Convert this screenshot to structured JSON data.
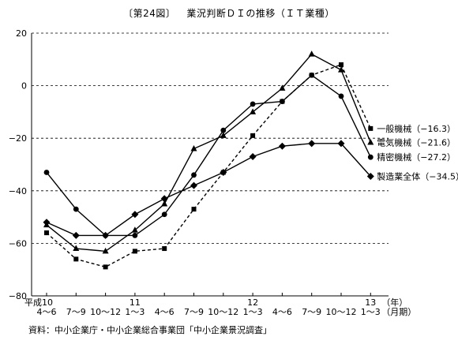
{
  "title": {
    "figure_no": "〔第24図〕",
    "text": "業況判断ＤＩの推移（ＩＴ業種）"
  },
  "source": "資料：中小企業庁・中小企業総合事業団「中小企業景況調査」",
  "chart_data": {
    "type": "line",
    "title": "業況判断ＤＩの推移（ＩＴ業種）",
    "ylim": [
      -80,
      20
    ],
    "yticks": [
      20,
      0,
      -20,
      -40,
      -60,
      -80
    ],
    "y_tick_labels": [
      "20",
      "0",
      "−20",
      "−40",
      "−60",
      "−80"
    ],
    "grid": "horizontal dashed",
    "categories": [
      "4〜6",
      "7〜9",
      "10〜12",
      "1〜3",
      "4〜6",
      "7〜9",
      "10〜12",
      "1〜3",
      "4〜6",
      "7〜9",
      "10〜12",
      "1〜3"
    ],
    "year_labels": [
      {
        "index": 0,
        "text": "平成10"
      },
      {
        "index": 3,
        "text": "11"
      },
      {
        "index": 7,
        "text": "12"
      },
      {
        "index": 11,
        "text": "13"
      }
    ],
    "x_unit_year": "（年）",
    "x_unit_month": "（月期）",
    "series": [
      {
        "name": "一般機械",
        "end_label": "一般機械（−16.3）",
        "marker": "square",
        "dash": true,
        "values": [
          -56,
          -66,
          -69,
          -63,
          -62,
          -47,
          -33,
          -19,
          -6,
          4,
          8,
          -16.3
        ]
      },
      {
        "name": "電気機械",
        "end_label": "電気機械（−21.6）",
        "marker": "triangle",
        "dash": false,
        "values": [
          -53,
          -62,
          -63,
          -55,
          -45,
          -24,
          -19,
          -10,
          -1,
          12,
          6,
          -21.6
        ]
      },
      {
        "name": "精密機械",
        "end_label": "精密機械（−27.2）",
        "marker": "circle",
        "dash": false,
        "values": [
          -33,
          -47,
          -57,
          -57,
          -49,
          -34,
          -17,
          -7,
          -6,
          4,
          -4,
          -27.2
        ]
      },
      {
        "name": "製造業全体",
        "end_label": "製造業全体（−34.5）",
        "marker": "diamond",
        "dash": false,
        "values": [
          -52,
          -57,
          -57,
          -49,
          -43,
          -38,
          -33,
          -27,
          -23,
          -22,
          -22,
          -34.5
        ]
      }
    ]
  }
}
